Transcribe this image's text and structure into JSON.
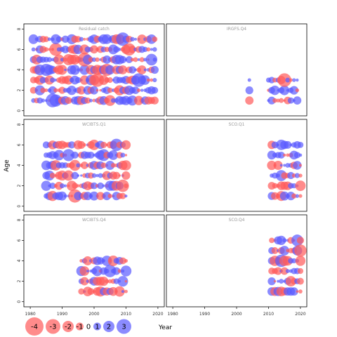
{
  "chart_data": {
    "type": "scatter",
    "ylabel": "Age",
    "xlabel": "Year",
    "x_ticks": [
      "1980",
      "1990",
      "2000",
      "2010",
      "2020"
    ],
    "y_ticks": [
      "0",
      "2",
      "4",
      "6",
      "8"
    ],
    "xlim": [
      1978,
      2022
    ],
    "ylim": [
      -0.5,
      8.5
    ],
    "colors": {
      "positive": "#5a5aff",
      "negative": "#ff5a5a"
    },
    "legend": {
      "values": [
        -4,
        -3,
        -2,
        -1,
        0,
        1,
        2,
        3
      ],
      "labels": [
        "-4",
        "-3",
        "-2",
        "-1",
        "0",
        "1",
        "2",
        "3"
      ]
    },
    "panels": [
      {
        "title": "Residual catch",
        "years": [
          1981,
          2019
        ],
        "ages": [
          1,
          2,
          3,
          4,
          5,
          6,
          7
        ],
        "seed": 11
      },
      {
        "title": "IRGFS.Q4",
        "years": [
          2004,
          2019
        ],
        "ages": [
          1,
          2,
          3
        ],
        "skip_years": [
          2005,
          2006,
          2007,
          2008,
          2009
        ],
        "seed": 23
      },
      {
        "title": "WCIBTS.Q1",
        "years": [
          1985,
          2010
        ],
        "ages": [
          1,
          2,
          3,
          4,
          5,
          6
        ],
        "seed": 37
      },
      {
        "title": "SCO.Q1",
        "years": [
          2011,
          2020
        ],
        "ages": [
          1,
          2,
          3,
          4,
          5,
          6
        ],
        "seed": 41
      },
      {
        "title": "WCIBTS.Q4",
        "years": [
          1996,
          2010
        ],
        "ages": [
          1,
          2,
          3,
          4
        ],
        "seed": 53
      },
      {
        "title": "SCO.Q4",
        "years": [
          2011,
          2020
        ],
        "ages": [
          1,
          2,
          3,
          4,
          5,
          6
        ],
        "seed": 67
      }
    ]
  }
}
